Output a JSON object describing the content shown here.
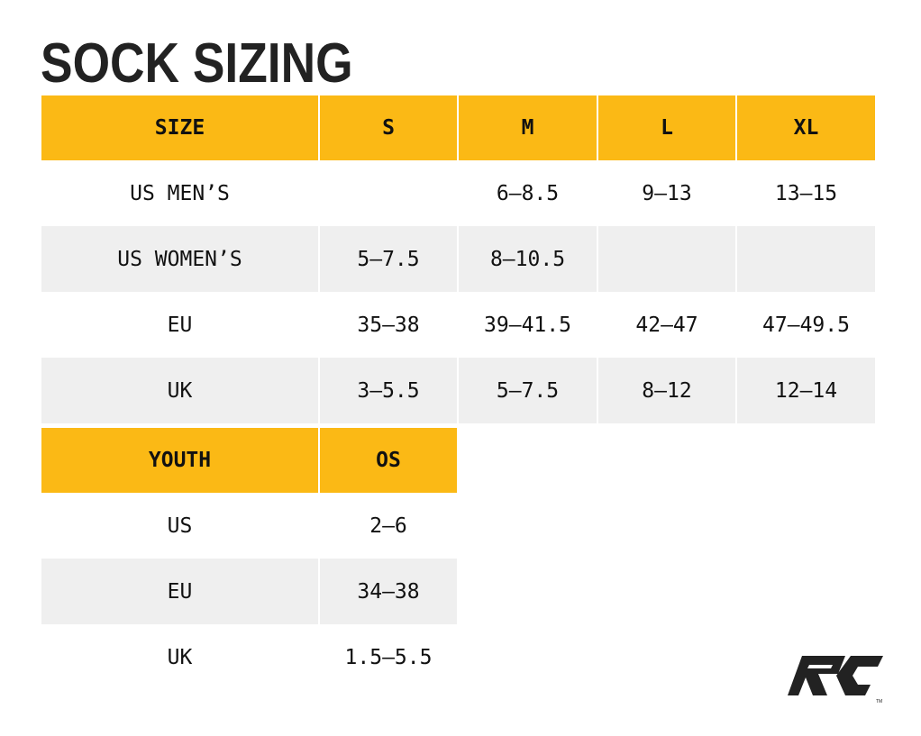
{
  "title": "SOCK SIZING",
  "adult": {
    "headers": [
      "SIZE",
      "S",
      "M",
      "L",
      "XL"
    ],
    "rows": [
      [
        "US MEN’S",
        "",
        "6–8.5",
        "9–13",
        "13–15"
      ],
      [
        "US WOMEN’S",
        "5–7.5",
        "8–10.5",
        "",
        ""
      ],
      [
        "EU",
        "35–38",
        "39–41.5",
        "42–47",
        "47–49.5"
      ],
      [
        "UK",
        "3–5.5",
        "5–7.5",
        "8–12",
        "12–14"
      ]
    ]
  },
  "youth": {
    "headers": [
      "YOUTH",
      "OS"
    ],
    "rows": [
      [
        "US",
        "2–6"
      ],
      [
        "EU",
        "34–38"
      ],
      [
        "UK",
        "1.5–5.5"
      ]
    ]
  },
  "colors": {
    "header": "#FBB915",
    "stripe": "#EFEFEF",
    "text": "#222222"
  },
  "logo": {
    "text": "RC",
    "mark": "TM"
  }
}
